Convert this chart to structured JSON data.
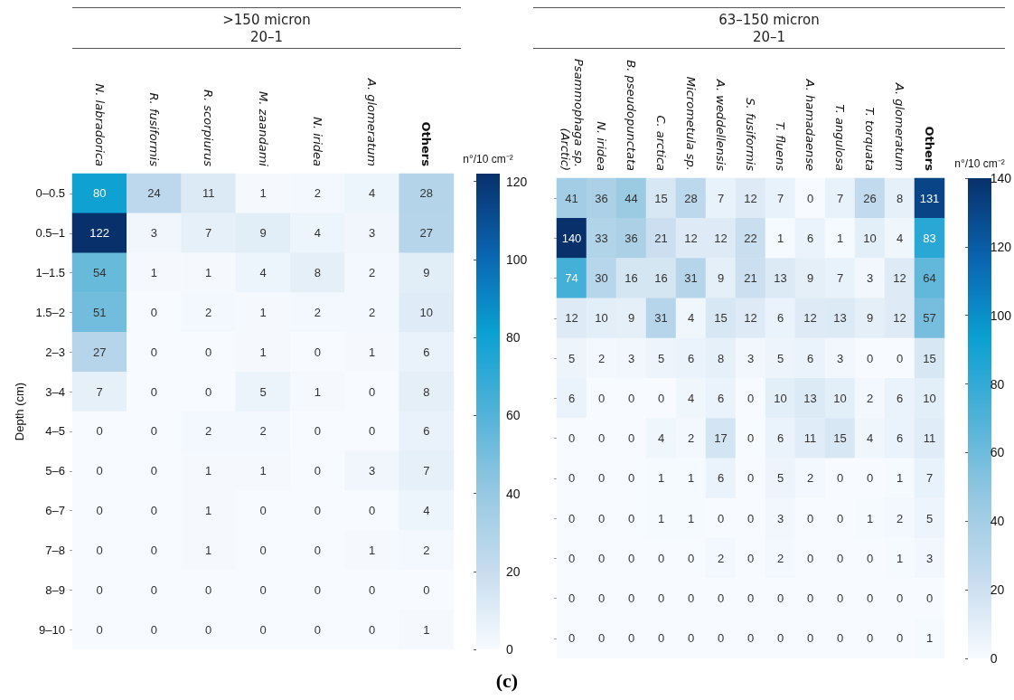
{
  "chart_data": [
    {
      "type": "heatmap",
      "title": ">150 micron",
      "subtitle": "20–1",
      "ylabel": "Depth (cm)",
      "clabel": "n°/10 cm⁻²",
      "annotations": [
        "(c)"
      ],
      "categories": [
        "N. labradorica",
        "R. fusiformis",
        "R. scorpiurus",
        "M. zaandami",
        "N. iridea",
        "A. glomeratum",
        "Others"
      ],
      "y_categories": [
        "0–0.5",
        "0.5–1",
        "1–1.5",
        "1.5–2",
        "2–3",
        "3–4",
        "4–5",
        "5–6",
        "6–7",
        "7–8",
        "8–9",
        "9–10"
      ],
      "cells": [
        [
          80,
          24,
          11,
          1,
          2,
          4,
          28
        ],
        [
          122,
          3,
          7,
          9,
          4,
          3,
          27
        ],
        [
          54,
          1,
          1,
          4,
          8,
          2,
          9
        ],
        [
          51,
          0,
          2,
          1,
          2,
          2,
          10
        ],
        [
          27,
          0,
          0,
          1,
          0,
          1,
          6
        ],
        [
          7,
          0,
          0,
          5,
          1,
          0,
          8
        ],
        [
          0,
          0,
          2,
          2,
          0,
          0,
          6
        ],
        [
          0,
          0,
          1,
          1,
          0,
          3,
          7
        ],
        [
          0,
          0,
          1,
          0,
          0,
          0,
          4
        ],
        [
          0,
          0,
          1,
          0,
          0,
          1,
          2
        ],
        [
          0,
          0,
          0,
          0,
          0,
          0,
          0
        ],
        [
          0,
          0,
          0,
          0,
          0,
          0,
          1
        ]
      ],
      "clim": [
        0,
        122
      ],
      "cticks": [
        0,
        20,
        40,
        60,
        80,
        100,
        120
      ],
      "data_labels": true
    },
    {
      "type": "heatmap",
      "title": "63–150 micron",
      "subtitle": "20–1",
      "clabel": "n°/10 cm⁻²",
      "tick_labels": "x",
      "categories": [
        "Psammophaga sp. (Arctic)",
        "N. iridea",
        "B. pseudopunctata",
        "C. arctica",
        "Micrometula sp.",
        "A. weddellensis",
        "S. fusiformis",
        "T. fluens",
        "A. hamadaense",
        "T. angulosa",
        "T. torquata",
        "A. glomeratum",
        "Others"
      ],
      "y_categories": [
        null,
        null,
        null,
        null,
        null,
        null,
        null,
        null,
        null,
        null,
        null,
        null
      ],
      "cells": [
        [
          41,
          36,
          44,
          15,
          28,
          7,
          12,
          7,
          0,
          7,
          26,
          8,
          131
        ],
        [
          140,
          33,
          36,
          21,
          12,
          12,
          22,
          1,
          6,
          1,
          10,
          4,
          83
        ],
        [
          74,
          30,
          16,
          16,
          31,
          9,
          21,
          13,
          9,
          7,
          3,
          12,
          64
        ],
        [
          12,
          10,
          9,
          31,
          4,
          15,
          12,
          6,
          12,
          13,
          9,
          12,
          57
        ],
        [
          5,
          2,
          3,
          5,
          6,
          8,
          3,
          5,
          6,
          3,
          0,
          0,
          15
        ],
        [
          6,
          0,
          0,
          0,
          4,
          6,
          0,
          10,
          13,
          10,
          2,
          6,
          10
        ],
        [
          0,
          0,
          0,
          4,
          2,
          17,
          0,
          6,
          11,
          15,
          4,
          6,
          11
        ],
        [
          0,
          0,
          0,
          1,
          1,
          6,
          0,
          5,
          2,
          0,
          0,
          1,
          7
        ],
        [
          0,
          0,
          0,
          1,
          1,
          0,
          0,
          3,
          0,
          0,
          1,
          2,
          5
        ],
        [
          0,
          0,
          0,
          0,
          0,
          2,
          0,
          2,
          0,
          0,
          0,
          1,
          3
        ],
        [
          0,
          0,
          0,
          0,
          0,
          0,
          0,
          0,
          0,
          0,
          0,
          0,
          0
        ],
        [
          0,
          0,
          0,
          0,
          0,
          0,
          0,
          0,
          0,
          0,
          0,
          0,
          1
        ]
      ],
      "clim": [
        0,
        140
      ],
      "cticks": [
        0,
        20,
        40,
        60,
        80,
        100,
        120,
        140
      ],
      "data_labels": true
    }
  ]
}
